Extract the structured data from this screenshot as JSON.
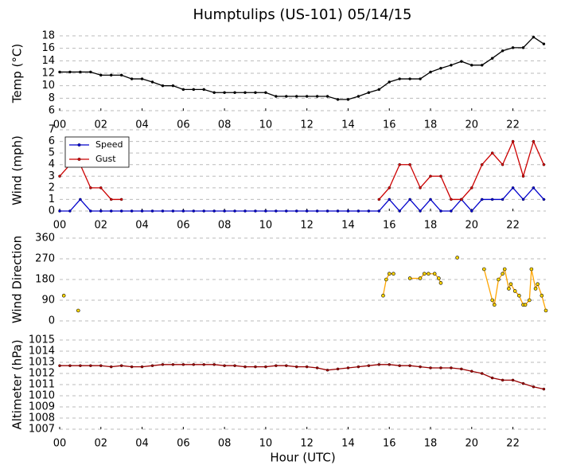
{
  "chart_data": [
    {
      "type": "line",
      "title": "Humptulips (US-101) 05/14/15",
      "ylabel": "Temp (°C)",
      "xlim": [
        0,
        23.6
      ],
      "xticks": [
        {
          "value": 0,
          "label": "00"
        },
        {
          "value": 2,
          "label": "02"
        },
        {
          "value": 4,
          "label": "04"
        },
        {
          "value": 6,
          "label": "06"
        },
        {
          "value": 8,
          "label": "08"
        },
        {
          "value": 10,
          "label": "10"
        },
        {
          "value": 12,
          "label": "12"
        },
        {
          "value": 14,
          "label": "14"
        },
        {
          "value": 16,
          "label": "16"
        },
        {
          "value": 18,
          "label": "18"
        },
        {
          "value": 20,
          "label": "20"
        },
        {
          "value": 22,
          "label": "22"
        }
      ],
      "ylim": [
        6,
        18
      ],
      "yticks": [
        6,
        8,
        10,
        12,
        14,
        16,
        18
      ],
      "grid": true,
      "x": [
        0,
        0.5,
        1,
        1.5,
        2,
        2.5,
        3,
        3.5,
        4,
        4.5,
        5,
        5.5,
        6,
        6.5,
        7,
        7.5,
        8,
        8.5,
        9,
        9.5,
        10,
        10.5,
        11,
        11.5,
        12,
        12.5,
        13,
        13.5,
        14,
        14.5,
        15,
        15.5,
        16,
        16.5,
        17,
        17.5,
        18,
        18.5,
        19,
        19.5,
        20,
        20.5,
        21,
        21.5,
        22,
        22.5,
        23,
        23.5
      ],
      "series": [
        {
          "color": "#000000",
          "values": [
            12.2,
            12.2,
            12.2,
            12.2,
            11.7,
            11.7,
            11.7,
            11.1,
            11.1,
            10.6,
            10.0,
            10.0,
            9.4,
            9.4,
            9.4,
            8.9,
            8.9,
            8.9,
            8.9,
            8.9,
            8.9,
            8.3,
            8.3,
            8.3,
            8.3,
            8.3,
            8.3,
            7.8,
            7.8,
            8.3,
            8.9,
            9.4,
            10.6,
            11.1,
            11.1,
            11.1,
            12.2,
            12.8,
            13.3,
            13.9,
            13.3,
            13.3,
            14.4,
            15.6,
            16.1,
            16.1,
            17.8,
            16.7
          ]
        }
      ]
    },
    {
      "type": "line",
      "ylabel": "Wind (mph)",
      "legend": "upper left",
      "xlim": [
        0,
        23.6
      ],
      "xticks": [
        {
          "value": 0,
          "label": "00"
        },
        {
          "value": 2,
          "label": "02"
        },
        {
          "value": 4,
          "label": "04"
        },
        {
          "value": 6,
          "label": "06"
        },
        {
          "value": 8,
          "label": "08"
        },
        {
          "value": 10,
          "label": "10"
        },
        {
          "value": 12,
          "label": "12"
        },
        {
          "value": 14,
          "label": "14"
        },
        {
          "value": 16,
          "label": "16"
        },
        {
          "value": 18,
          "label": "18"
        },
        {
          "value": 20,
          "label": "20"
        },
        {
          "value": 22,
          "label": "22"
        }
      ],
      "ylim": [
        0,
        7
      ],
      "yticks": [
        0,
        1,
        2,
        3,
        4,
        5,
        6,
        7
      ],
      "grid": true,
      "x": [
        0,
        0.5,
        1,
        1.5,
        2,
        2.5,
        3,
        3.5,
        4,
        4.5,
        5,
        5.5,
        6,
        6.5,
        7,
        7.5,
        8,
        8.5,
        9,
        9.5,
        10,
        10.5,
        11,
        11.5,
        12,
        12.5,
        13,
        13.5,
        14,
        14.5,
        15,
        15.5,
        16,
        16.5,
        17,
        17.5,
        18,
        18.5,
        19,
        19.5,
        20,
        20.5,
        21,
        21.5,
        22,
        22.5,
        23,
        23.5
      ],
      "series": [
        {
          "name": "Speed",
          "color": "#0000cc",
          "values": [
            0,
            0,
            1,
            0,
            0,
            0,
            0,
            0,
            0,
            0,
            0,
            0,
            0,
            0,
            0,
            0,
            0,
            0,
            0,
            0,
            0,
            0,
            0,
            0,
            0,
            0,
            0,
            0,
            0,
            0,
            0,
            0,
            1,
            0,
            1,
            0,
            1,
            0,
            0,
            1,
            0,
            1,
            1,
            1,
            2,
            1,
            2,
            1
          ]
        },
        {
          "name": "Gust",
          "color": "#cc0000",
          "values": [
            3,
            4,
            4,
            2,
            2,
            1,
            1,
            null,
            null,
            null,
            null,
            null,
            null,
            null,
            null,
            null,
            null,
            null,
            null,
            null,
            null,
            null,
            null,
            null,
            null,
            null,
            null,
            null,
            null,
            null,
            null,
            1,
            2,
            4,
            4,
            2,
            3,
            3,
            1,
            1,
            2,
            4,
            5,
            4,
            6,
            3,
            6,
            4
          ]
        }
      ]
    },
    {
      "type": "line",
      "ylabel": "Wind Direction",
      "xlim": [
        0,
        23.6
      ],
      "ylim": [
        0,
        360
      ],
      "yticks": [
        0,
        90,
        180,
        270,
        360
      ],
      "grid": true,
      "x": [
        0.2,
        0.9,
        15.7,
        15.85,
        16,
        16.2,
        17,
        17.5,
        17.7,
        17.9,
        18.2,
        18.4,
        18.5,
        19.3,
        20.6,
        21,
        21.1,
        21.3,
        21.5,
        21.6,
        21.8,
        21.9,
        22.1,
        22.3,
        22.5,
        22.6,
        22.8,
        22.9,
        23.1,
        23.2,
        23.4,
        23.6
      ],
      "series": [
        {
          "color": "#ffa500",
          "values": [
            110,
            45,
            110,
            180,
            205,
            205,
            185,
            185,
            205,
            205,
            205,
            185,
            165,
            275,
            225,
            90,
            70,
            180,
            205,
            225,
            140,
            160,
            130,
            110,
            70,
            70,
            90,
            225,
            140,
            160,
            110,
            45
          ]
        }
      ]
    },
    {
      "type": "line",
      "ylabel": "Altimeter (hPa)",
      "xlabel": "Hour (UTC)",
      "xlim": [
        0,
        23.6
      ],
      "xticks": [
        {
          "value": 0,
          "label": "00"
        },
        {
          "value": 2,
          "label": "02"
        },
        {
          "value": 4,
          "label": "04"
        },
        {
          "value": 6,
          "label": "06"
        },
        {
          "value": 8,
          "label": "08"
        },
        {
          "value": 10,
          "label": "10"
        },
        {
          "value": 12,
          "label": "12"
        },
        {
          "value": 14,
          "label": "14"
        },
        {
          "value": 16,
          "label": "16"
        },
        {
          "value": 18,
          "label": "18"
        },
        {
          "value": 20,
          "label": "20"
        },
        {
          "value": 22,
          "label": "22"
        }
      ],
      "ylim": [
        1007,
        1015
      ],
      "yticks": [
        1007,
        1008,
        1009,
        1010,
        1011,
        1012,
        1013,
        1014,
        1015
      ],
      "grid": true,
      "x": [
        0,
        0.5,
        1,
        1.5,
        2,
        2.5,
        3,
        3.5,
        4,
        4.5,
        5,
        5.5,
        6,
        6.5,
        7,
        7.5,
        8,
        8.5,
        9,
        9.5,
        10,
        10.5,
        11,
        11.5,
        12,
        12.5,
        13,
        13.5,
        14,
        14.5,
        15,
        15.5,
        16,
        16.5,
        17,
        17.5,
        18,
        18.5,
        19,
        19.5,
        20,
        20.5,
        21,
        21.5,
        22,
        22.5,
        23,
        23.5
      ],
      "series": [
        {
          "color": "#990000",
          "values": [
            1012.7,
            1012.7,
            1012.7,
            1012.7,
            1012.7,
            1012.6,
            1012.7,
            1012.6,
            1012.6,
            1012.7,
            1012.8,
            1012.8,
            1012.8,
            1012.8,
            1012.8,
            1012.8,
            1012.7,
            1012.7,
            1012.6,
            1012.6,
            1012.6,
            1012.7,
            1012.7,
            1012.6,
            1012.6,
            1012.5,
            1012.3,
            1012.4,
            1012.5,
            1012.6,
            1012.7,
            1012.8,
            1012.8,
            1012.7,
            1012.7,
            1012.6,
            1012.5,
            1012.5,
            1012.5,
            1012.4,
            1012.2,
            1012.0,
            1011.6,
            1011.4,
            1011.4,
            1011.1,
            1010.8,
            1010.6
          ]
        }
      ]
    }
  ]
}
